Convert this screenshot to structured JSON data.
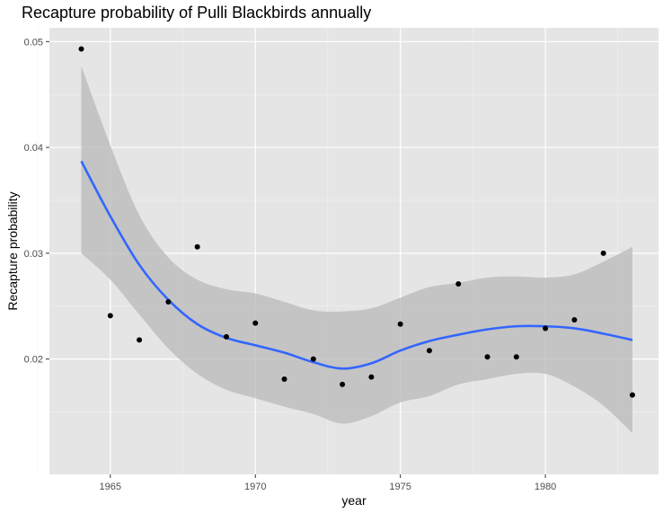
{
  "chart_data": {
    "type": "scatter",
    "title": "Recapture probability of Pulli Blackbirds annually",
    "xlabel": "year",
    "ylabel": "Recapture probability",
    "xlim": [
      1962.9,
      1983.9
    ],
    "ylim": [
      0.0091,
      0.0513
    ],
    "x_ticks": [
      1965,
      1970,
      1975,
      1980
    ],
    "x_tick_labels": [
      "1965",
      "1970",
      "1975",
      "1980"
    ],
    "y_ticks": [
      0.02,
      0.03,
      0.04,
      0.05
    ],
    "y_tick_labels": [
      "0.02",
      "0.03",
      "0.04",
      "0.05"
    ],
    "grid": true,
    "points": {
      "x": [
        1964,
        1965,
        1966,
        1967,
        1968,
        1969,
        1970,
        1971,
        1972,
        1973,
        1974,
        1975,
        1976,
        1977,
        1978,
        1979,
        1980,
        1981,
        1982,
        1983
      ],
      "y": [
        0.0493,
        0.0241,
        0.0218,
        0.0254,
        0.0306,
        0.0221,
        0.0234,
        0.0181,
        0.02,
        0.0176,
        0.0183,
        0.0233,
        0.0208,
        0.0271,
        0.0202,
        0.0202,
        0.0229,
        0.0237,
        0.03,
        0.0166
      ]
    },
    "smooth": {
      "x": [
        1964,
        1965,
        1966,
        1967,
        1968,
        1969,
        1970,
        1971,
        1972,
        1973,
        1974,
        1975,
        1976,
        1977,
        1978,
        1979,
        1980,
        1981,
        1982,
        1983
      ],
      "y": [
        0.0387,
        0.0335,
        0.0289,
        0.0256,
        0.0233,
        0.022,
        0.0213,
        0.0206,
        0.0197,
        0.0191,
        0.0196,
        0.0208,
        0.0217,
        0.0223,
        0.0228,
        0.0231,
        0.0231,
        0.0229,
        0.0224,
        0.0218
      ],
      "lower": [
        0.03,
        0.0275,
        0.0242,
        0.021,
        0.0186,
        0.0171,
        0.0163,
        0.0155,
        0.0148,
        0.0139,
        0.0146,
        0.0159,
        0.0165,
        0.0176,
        0.0181,
        0.0186,
        0.0186,
        0.0174,
        0.0156,
        0.013
      ],
      "upper": [
        0.0477,
        0.0402,
        0.0336,
        0.0296,
        0.0275,
        0.0266,
        0.0262,
        0.0254,
        0.0246,
        0.0245,
        0.0248,
        0.0258,
        0.0268,
        0.0272,
        0.0277,
        0.0278,
        0.0277,
        0.028,
        0.0292,
        0.0306
      ]
    },
    "colors": {
      "panel": "#e5e5e5",
      "grid_major": "#ffffff",
      "grid_minor": "#f2f2f2",
      "point": "#000000",
      "line": "#3366ff",
      "ribbon": "#b8b8b8"
    }
  }
}
